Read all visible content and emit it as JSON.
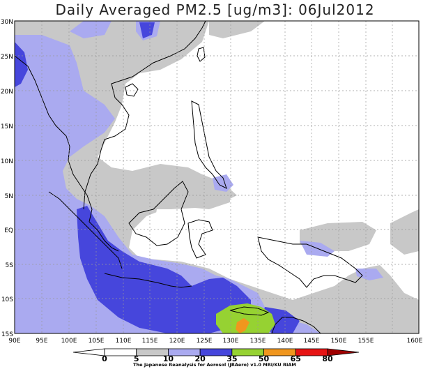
{
  "title": "Daily Averaged PM2.5 [ug/m3]: 06Jul2012",
  "lat_labels": [
    "30N",
    "25N",
    "20N",
    "15N",
    "10N",
    "5N",
    "EQ",
    "5S",
    "10S",
    "15S"
  ],
  "lon_labels": [
    "90E",
    "95E",
    "100E",
    "105E",
    "110E",
    "115E",
    "120E",
    "125E",
    "130E",
    "135E",
    "140E",
    "145E",
    "150E",
    "155E",
    "160E"
  ],
  "colorbar": {
    "levels": [
      "0",
      "5",
      "10",
      "20",
      "35",
      "50",
      "65",
      "80"
    ],
    "colors": [
      "#ffffff",
      "#ffffff",
      "#c8c8c8",
      "#aaaaf0",
      "#4646dc",
      "#96d232",
      "#f0961e",
      "#e61414",
      "#a00000"
    ]
  },
  "credit": "The Japanese Reanalysis for Aerosol (JRAero) v1.0 MRI/KU RIAM"
}
